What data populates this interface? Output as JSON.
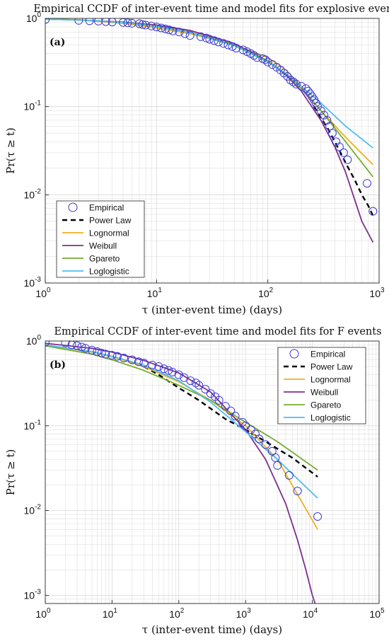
{
  "colors": {
    "empirical": "#3a3ad8",
    "powerlaw": "#000000",
    "lognormal": "#edb120",
    "weibull": "#7e2f8e",
    "gpareto": "#77ac30",
    "loglogistic": "#4dbeee",
    "grid": "#d9d9d9"
  },
  "chart_data": [
    {
      "type": "scatter",
      "title": "Empirical CCDF of inter-event time and model fits for explosive events",
      "panel_label": "(a)",
      "xlabel": "τ (inter-event time) (days)",
      "ylabel": "Pr(τ ≥ t)",
      "xscale": "log",
      "yscale": "log",
      "xlim": [
        1,
        1000
      ],
      "ylim": [
        0.001,
        1
      ],
      "x_ticks": [
        {
          "value": 1,
          "base": "10",
          "exp": "0"
        },
        {
          "value": 10,
          "base": "10",
          "exp": "1"
        },
        {
          "value": 100,
          "base": "10",
          "exp": "2"
        },
        {
          "value": 1000,
          "base": "10",
          "exp": "3"
        }
      ],
      "y_ticks": [
        {
          "value": 0.001,
          "base": "10",
          "exp": "-3"
        },
        {
          "value": 0.01,
          "base": "10",
          "exp": "-2"
        },
        {
          "value": 0.1,
          "base": "10",
          "exp": "-1"
        },
        {
          "value": 1,
          "base": "10",
          "exp": "0"
        }
      ],
      "grid": true,
      "legend_position": "bottom-left",
      "series": [
        {
          "name": "Empirical",
          "kind": "markers",
          "color_key": "empirical",
          "points": [
            [
              1,
              0.97
            ],
            [
              2,
              0.95
            ],
            [
              2.5,
              0.94
            ],
            [
              3,
              0.93
            ],
            [
              3.5,
              0.92
            ],
            [
              4,
              0.91
            ],
            [
              5,
              0.9
            ],
            [
              5.5,
              0.89
            ],
            [
              6,
              0.88
            ],
            [
              7,
              0.87
            ],
            [
              7.5,
              0.85
            ],
            [
              8,
              0.84
            ],
            [
              9,
              0.82
            ],
            [
              10,
              0.8
            ],
            [
              11,
              0.78
            ],
            [
              12,
              0.76
            ],
            [
              13,
              0.74
            ],
            [
              14,
              0.72
            ],
            [
              16,
              0.7
            ],
            [
              18,
              0.67
            ],
            [
              20,
              0.64
            ],
            [
              25,
              0.62
            ],
            [
              28,
              0.6
            ],
            [
              30,
              0.58
            ],
            [
              33,
              0.56
            ],
            [
              36,
              0.54
            ],
            [
              40,
              0.52
            ],
            [
              44,
              0.5
            ],
            [
              48,
              0.48
            ],
            [
              52,
              0.46
            ],
            [
              60,
              0.44
            ],
            [
              65,
              0.42
            ],
            [
              70,
              0.4
            ],
            [
              75,
              0.38
            ],
            [
              80,
              0.36
            ],
            [
              90,
              0.35
            ],
            [
              95,
              0.34
            ],
            [
              100,
              0.32
            ],
            [
              110,
              0.3
            ],
            [
              120,
              0.28
            ],
            [
              130,
              0.26
            ],
            [
              140,
              0.24
            ],
            [
              150,
              0.22
            ],
            [
              160,
              0.2
            ],
            [
              170,
              0.19
            ],
            [
              180,
              0.18
            ],
            [
              200,
              0.17
            ],
            [
              220,
              0.16
            ],
            [
              230,
              0.15
            ],
            [
              240,
              0.14
            ],
            [
              250,
              0.13
            ],
            [
              260,
              0.12
            ],
            [
              270,
              0.11
            ],
            [
              280,
              0.1
            ],
            [
              300,
              0.09
            ],
            [
              320,
              0.08
            ],
            [
              340,
              0.07
            ],
            [
              360,
              0.06
            ],
            [
              380,
              0.05
            ],
            [
              410,
              0.04
            ],
            [
              440,
              0.035
            ],
            [
              480,
              0.03
            ],
            [
              520,
              0.025
            ],
            [
              780,
              0.0135
            ],
            [
              880,
              0.0065
            ]
          ]
        },
        {
          "name": "Power Law",
          "kind": "line",
          "color_key": "powerlaw",
          "dashed": true,
          "points": [
            [
              260,
              0.1
            ],
            [
              300,
              0.075
            ],
            [
              350,
              0.055
            ],
            [
              400,
              0.04
            ],
            [
              450,
              0.03
            ],
            [
              500,
              0.023
            ],
            [
              600,
              0.015
            ],
            [
              700,
              0.01
            ],
            [
              800,
              0.0075
            ],
            [
              880,
              0.0058
            ]
          ]
        },
        {
          "name": "Lognormal",
          "kind": "line",
          "color_key": "lognormal",
          "points": [
            [
              1,
              0.99
            ],
            [
              2,
              0.96
            ],
            [
              5,
              0.88
            ],
            [
              10,
              0.78
            ],
            [
              20,
              0.67
            ],
            [
              50,
              0.5
            ],
            [
              100,
              0.36
            ],
            [
              150,
              0.25
            ],
            [
              200,
              0.17
            ],
            [
              300,
              0.09
            ],
            [
              500,
              0.045
            ],
            [
              880,
              0.022
            ]
          ]
        },
        {
          "name": "Weibull",
          "kind": "line",
          "color_key": "weibull",
          "points": [
            [
              1,
              0.98
            ],
            [
              2,
              0.96
            ],
            [
              5,
              0.91
            ],
            [
              10,
              0.84
            ],
            [
              20,
              0.73
            ],
            [
              50,
              0.52
            ],
            [
              100,
              0.33
            ],
            [
              150,
              0.22
            ],
            [
              200,
              0.15
            ],
            [
              300,
              0.07
            ],
            [
              400,
              0.035
            ],
            [
              500,
              0.018
            ],
            [
              600,
              0.009
            ],
            [
              700,
              0.005
            ],
            [
              880,
              0.0029
            ]
          ]
        },
        {
          "name": "Gpareto",
          "kind": "line",
          "color_key": "gpareto",
          "points": [
            [
              1,
              0.98
            ],
            [
              2,
              0.96
            ],
            [
              5,
              0.9
            ],
            [
              10,
              0.82
            ],
            [
              20,
              0.7
            ],
            [
              50,
              0.5
            ],
            [
              100,
              0.33
            ],
            [
              150,
              0.23
            ],
            [
              200,
              0.16
            ],
            [
              300,
              0.09
            ],
            [
              500,
              0.04
            ],
            [
              880,
              0.016
            ]
          ]
        },
        {
          "name": "Loglogistic",
          "kind": "line",
          "color_key": "loglogistic",
          "points": [
            [
              1,
              0.98
            ],
            [
              2,
              0.96
            ],
            [
              5,
              0.9
            ],
            [
              10,
              0.81
            ],
            [
              20,
              0.69
            ],
            [
              50,
              0.49
            ],
            [
              100,
              0.32
            ],
            [
              150,
              0.23
            ],
            [
              200,
              0.17
            ],
            [
              300,
              0.11
            ],
            [
              500,
              0.06
            ],
            [
              880,
              0.034
            ]
          ]
        }
      ]
    },
    {
      "type": "scatter",
      "title": "Empirical CCDF of inter-event time and model fits for F events",
      "panel_label": "(b)",
      "xlabel": "τ (inter-event time) (days)",
      "ylabel": "Pr(τ ≥ t)",
      "xscale": "log",
      "yscale": "log",
      "xlim": [
        1,
        100000
      ],
      "ylim": [
        0.0008,
        1
      ],
      "x_ticks": [
        {
          "value": 1,
          "base": "10",
          "exp": "0"
        },
        {
          "value": 10,
          "base": "10",
          "exp": "1"
        },
        {
          "value": 100,
          "base": "10",
          "exp": "2"
        },
        {
          "value": 1000,
          "base": "10",
          "exp": "3"
        },
        {
          "value": 10000,
          "base": "10",
          "exp": "4"
        },
        {
          "value": 100000,
          "base": "10",
          "exp": "5"
        }
      ],
      "y_ticks": [
        {
          "value": 0.001,
          "base": "10",
          "exp": "-3"
        },
        {
          "value": 0.01,
          "base": "10",
          "exp": "-2"
        },
        {
          "value": 0.1,
          "base": "10",
          "exp": "-1"
        },
        {
          "value": 1,
          "base": "10",
          "exp": "0"
        }
      ],
      "grid": true,
      "legend_position": "top-right",
      "series": [
        {
          "name": "Empirical",
          "kind": "markers",
          "color_key": "empirical",
          "points": [
            [
              1,
              0.97
            ],
            [
              2,
              0.95
            ],
            [
              2.5,
              0.9
            ],
            [
              3,
              0.88
            ],
            [
              3.5,
              0.85
            ],
            [
              4,
              0.82
            ],
            [
              5,
              0.78
            ],
            [
              6,
              0.75
            ],
            [
              7,
              0.72
            ],
            [
              8,
              0.7
            ],
            [
              10,
              0.68
            ],
            [
              12,
              0.66
            ],
            [
              15,
              0.63
            ],
            [
              20,
              0.6
            ],
            [
              25,
              0.57
            ],
            [
              30,
              0.55
            ],
            [
              40,
              0.52
            ],
            [
              50,
              0.5
            ],
            [
              60,
              0.47
            ],
            [
              70,
              0.45
            ],
            [
              80,
              0.43
            ],
            [
              100,
              0.4
            ],
            [
              120,
              0.37
            ],
            [
              150,
              0.34
            ],
            [
              180,
              0.32
            ],
            [
              200,
              0.3
            ],
            [
              250,
              0.27
            ],
            [
              300,
              0.24
            ],
            [
              350,
              0.22
            ],
            [
              400,
              0.2
            ],
            [
              500,
              0.17
            ],
            [
              600,
              0.15
            ],
            [
              700,
              0.13
            ],
            [
              900,
              0.11
            ],
            [
              1000,
              0.1
            ],
            [
              1200,
              0.09
            ],
            [
              1400,
              0.08
            ],
            [
              1600,
              0.07
            ],
            [
              2000,
              0.06
            ],
            [
              2500,
              0.05
            ],
            [
              2800,
              0.042
            ],
            [
              3000,
              0.034
            ],
            [
              4500,
              0.026
            ],
            [
              6000,
              0.017
            ],
            [
              12000,
              0.0085
            ]
          ]
        },
        {
          "name": "Power Law",
          "kind": "line",
          "color_key": "powerlaw",
          "dashed": true,
          "points": [
            [
              30,
              0.5
            ],
            [
              50,
              0.4
            ],
            [
              100,
              0.28
            ],
            [
              200,
              0.2
            ],
            [
              500,
              0.12
            ],
            [
              1000,
              0.09
            ],
            [
              2000,
              0.065
            ],
            [
              5000,
              0.042
            ],
            [
              12000,
              0.025
            ]
          ]
        },
        {
          "name": "Lognormal",
          "kind": "line",
          "color_key": "lognormal",
          "points": [
            [
              1,
              0.9
            ],
            [
              5,
              0.74
            ],
            [
              10,
              0.65
            ],
            [
              30,
              0.5
            ],
            [
              100,
              0.33
            ],
            [
              300,
              0.2
            ],
            [
              1000,
              0.1
            ],
            [
              3000,
              0.04
            ],
            [
              12000,
              0.006
            ]
          ]
        },
        {
          "name": "Weibull",
          "kind": "line",
          "color_key": "weibull",
          "points": [
            [
              1,
              0.94
            ],
            [
              5,
              0.82
            ],
            [
              10,
              0.74
            ],
            [
              30,
              0.59
            ],
            [
              100,
              0.42
            ],
            [
              300,
              0.25
            ],
            [
              1000,
              0.09
            ],
            [
              2000,
              0.04
            ],
            [
              4000,
              0.012
            ],
            [
              6000,
              0.0045
            ],
            [
              8000,
              0.002
            ],
            [
              10000,
              0.001
            ],
            [
              11000,
              0.0008
            ]
          ]
        },
        {
          "name": "Gpareto",
          "kind": "line",
          "color_key": "gpareto",
          "points": [
            [
              1,
              0.88
            ],
            [
              5,
              0.7
            ],
            [
              10,
              0.6
            ],
            [
              30,
              0.45
            ],
            [
              100,
              0.3
            ],
            [
              300,
              0.2
            ],
            [
              1000,
              0.11
            ],
            [
              3000,
              0.065
            ],
            [
              12000,
              0.03
            ]
          ]
        },
        {
          "name": "Loglogistic",
          "kind": "line",
          "color_key": "loglogistic",
          "points": [
            [
              1,
              0.9
            ],
            [
              5,
              0.75
            ],
            [
              10,
              0.66
            ],
            [
              30,
              0.52
            ],
            [
              100,
              0.34
            ],
            [
              300,
              0.19
            ],
            [
              1000,
              0.085
            ],
            [
              3000,
              0.04
            ],
            [
              12000,
              0.014
            ]
          ]
        }
      ]
    }
  ]
}
